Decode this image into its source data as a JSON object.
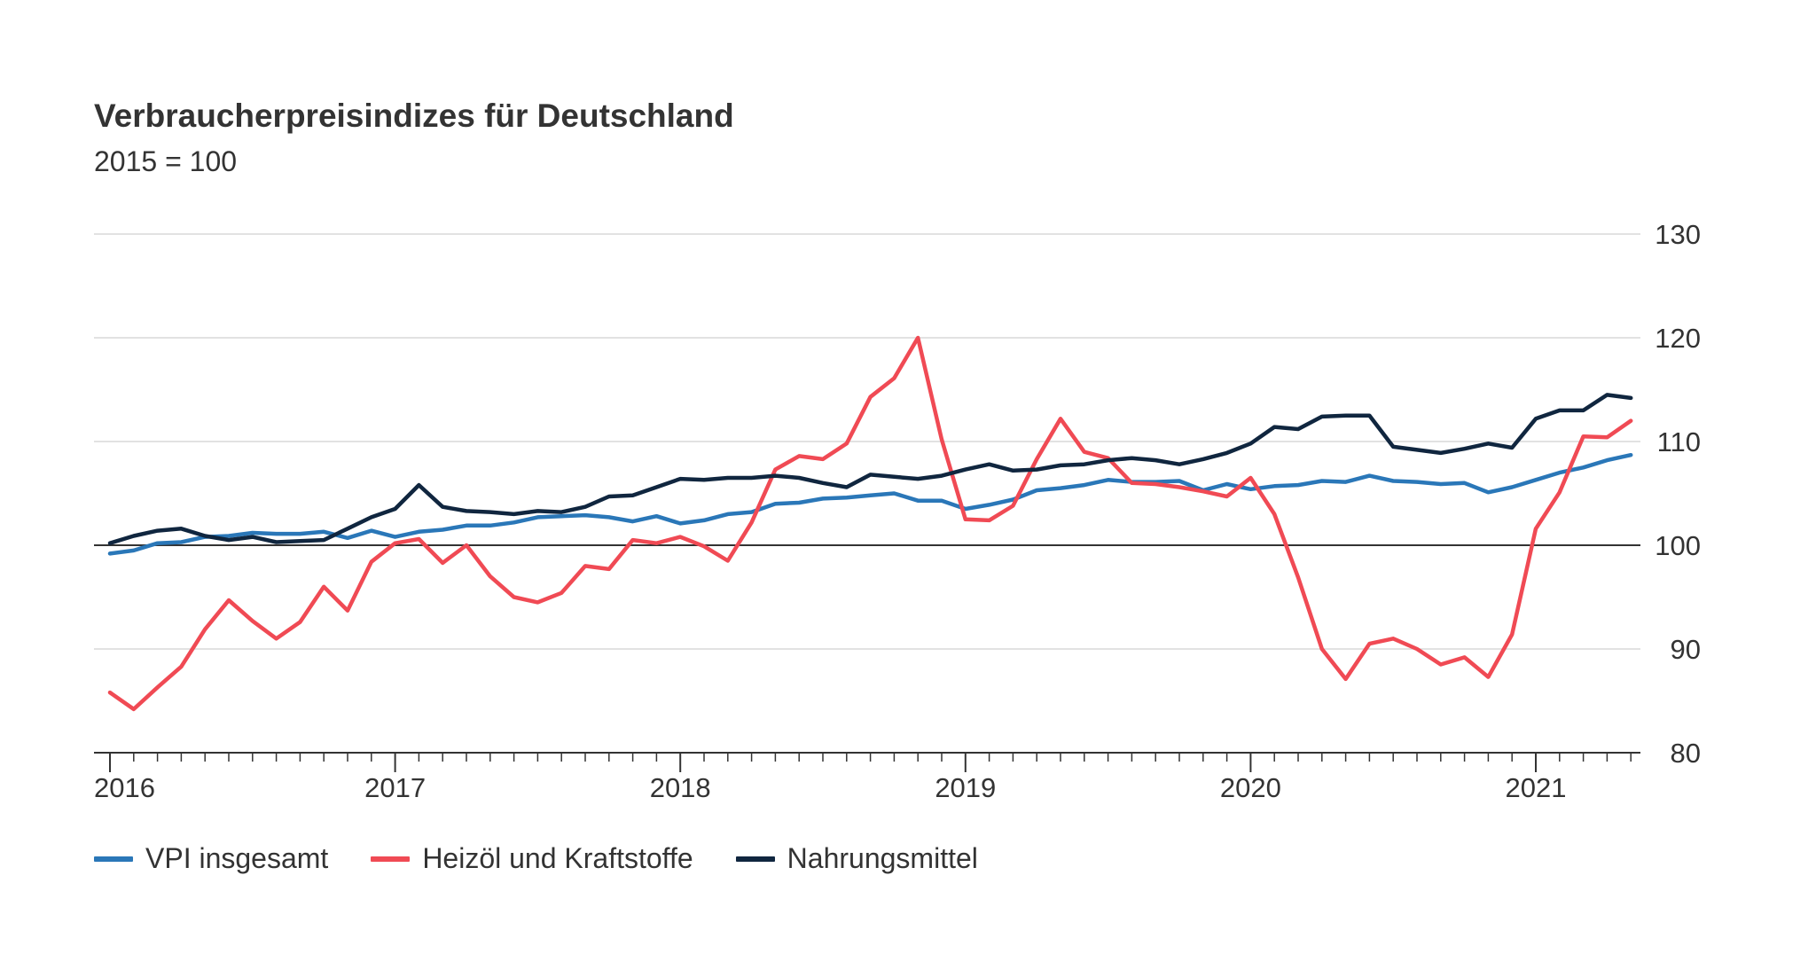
{
  "chart_data": {
    "type": "line",
    "title": "Verbraucherpreisindizes für Deutschland",
    "subtitle": "2015 = 100",
    "xlabel": "",
    "ylabel": "",
    "x_start": "2016-01",
    "x_ticks": [
      "2016",
      "2017",
      "2018",
      "2019",
      "2020",
      "2021"
    ],
    "y_ticks": [
      80,
      90,
      100,
      110,
      120,
      130
    ],
    "ylim": [
      80,
      130
    ],
    "y_axis_position": "right",
    "reference_line": 100,
    "grid": true,
    "legend_position": "bottom-left",
    "series": [
      {
        "name": "VPI insgesamt",
        "color": "#2a77b8",
        "values": [
          99.2,
          99.5,
          100.2,
          100.3,
          100.8,
          100.9,
          101.2,
          101.1,
          101.1,
          101.3,
          100.7,
          101.4,
          100.8,
          101.3,
          101.5,
          101.9,
          101.9,
          102.2,
          102.7,
          102.8,
          102.9,
          102.7,
          102.3,
          102.8,
          102.1,
          102.4,
          103.0,
          103.2,
          104.0,
          104.1,
          104.5,
          104.6,
          104.8,
          105.0,
          104.3,
          104.3,
          103.5,
          103.9,
          104.4,
          105.3,
          105.5,
          105.8,
          106.3,
          106.1,
          106.1,
          106.2,
          105.3,
          105.9,
          105.4,
          105.7,
          105.8,
          106.2,
          106.1,
          106.7,
          106.2,
          106.1,
          105.9,
          106.0,
          105.1,
          105.6,
          106.3,
          107.0,
          107.5,
          108.2,
          108.7
        ]
      },
      {
        "name": "Heizöl und Kraftstoffe",
        "color": "#f04a54",
        "values": [
          85.8,
          84.2,
          86.3,
          88.3,
          91.9,
          94.7,
          92.7,
          91.0,
          92.6,
          96.0,
          93.7,
          98.4,
          100.2,
          100.6,
          98.3,
          100.0,
          97.0,
          95.0,
          94.5,
          95.4,
          98.0,
          97.7,
          100.5,
          100.2,
          100.8,
          99.9,
          98.5,
          102.2,
          107.3,
          108.6,
          108.3,
          109.8,
          114.3,
          116.1,
          120.0,
          110.2,
          102.5,
          102.4,
          103.8,
          108.3,
          112.2,
          109.0,
          108.4,
          106.0,
          105.9,
          105.6,
          105.2,
          104.7,
          106.5,
          103.0,
          96.9,
          90.0,
          87.1,
          90.5,
          91.0,
          90.0,
          88.5,
          89.2,
          87.3,
          91.4,
          101.6,
          105.1,
          110.5,
          110.4,
          112.0
        ]
      },
      {
        "name": "Nahrungsmittel",
        "color": "#10263f",
        "values": [
          100.2,
          100.9,
          101.4,
          101.6,
          100.9,
          100.5,
          100.8,
          100.3,
          100.4,
          100.5,
          101.6,
          102.7,
          103.5,
          105.8,
          103.7,
          103.3,
          103.2,
          103.0,
          103.3,
          103.2,
          103.7,
          104.7,
          104.8,
          105.6,
          106.4,
          106.3,
          106.5,
          106.5,
          106.7,
          106.5,
          106.0,
          105.6,
          106.8,
          106.6,
          106.4,
          106.7,
          107.3,
          107.8,
          107.2,
          107.3,
          107.7,
          107.8,
          108.2,
          108.4,
          108.2,
          107.8,
          108.3,
          108.9,
          109.8,
          111.4,
          111.2,
          112.4,
          112.5,
          112.5,
          109.5,
          109.2,
          108.9,
          109.3,
          109.8,
          109.4,
          112.2,
          113.0,
          113.0,
          114.5,
          114.2
        ]
      }
    ]
  }
}
